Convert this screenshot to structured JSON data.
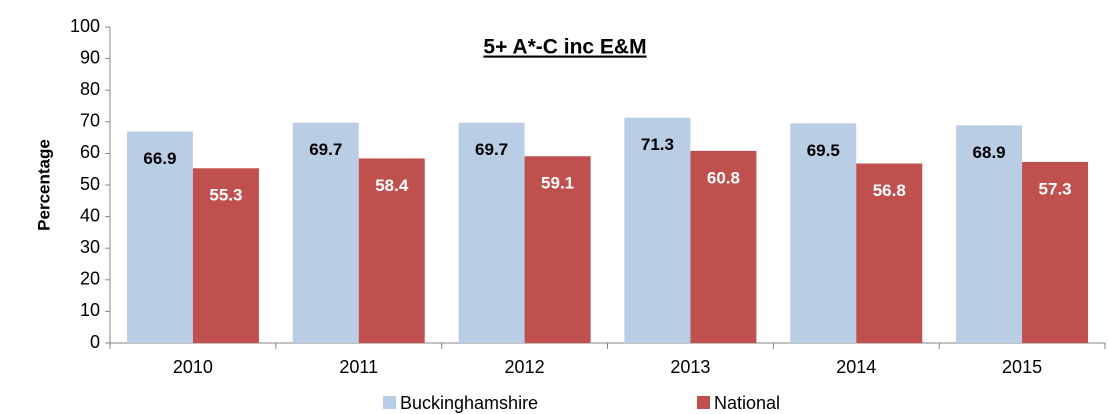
{
  "chart_data": {
    "type": "bar",
    "title": "5+ A*-C inc E&M",
    "y_label": "Percentage",
    "categories": [
      "2010",
      "2011",
      "2012",
      "2013",
      "2014",
      "2015"
    ],
    "series": [
      {
        "name": "Buckinghamshire",
        "color": "#b9cde5",
        "label_color": "#000000",
        "values": [
          66.9,
          69.7,
          69.7,
          71.3,
          69.5,
          68.9
        ]
      },
      {
        "name": "National",
        "color": "#c0504d",
        "label_color": "#ffffff",
        "values": [
          55.3,
          58.4,
          59.1,
          60.8,
          56.8,
          57.3
        ]
      }
    ],
    "ylim": [
      0,
      100
    ],
    "yticks": [
      0,
      10,
      20,
      30,
      40,
      50,
      60,
      70,
      80,
      90,
      100
    ],
    "grid": false,
    "legend": "bottom"
  }
}
